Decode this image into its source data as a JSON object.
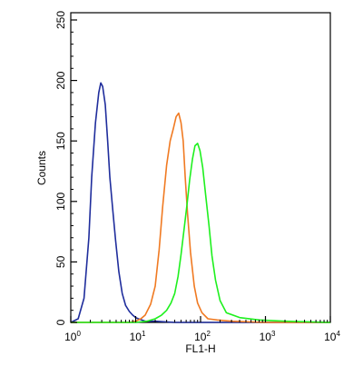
{
  "chart_data": {
    "type": "line",
    "title": "",
    "xlabel": "FL1-H",
    "ylabel": "Counts",
    "x_scale": "log",
    "xlim": [
      1,
      10000
    ],
    "ylim": [
      0,
      256
    ],
    "grid": false,
    "legend": "none",
    "x_ticks": [
      {
        "value": 1,
        "base": "10",
        "exp": "0"
      },
      {
        "value": 10,
        "base": "10",
        "exp": "1"
      },
      {
        "value": 100,
        "base": "10",
        "exp": "2"
      },
      {
        "value": 1000,
        "base": "10",
        "exp": "3"
      },
      {
        "value": 10000,
        "base": "10",
        "exp": "4"
      }
    ],
    "y_ticks": [
      "0",
      "50",
      "100",
      "150",
      "200",
      "250"
    ],
    "series": [
      {
        "color": "#1f2d9c",
        "x": [
          1.0,
          1.3,
          1.6,
          1.9,
          2.1,
          2.4,
          2.7,
          2.9,
          3.1,
          3.4,
          3.7,
          4.0,
          4.4,
          4.9,
          5.5,
          6.2,
          7.0,
          8.0,
          9.0,
          10.0,
          11.0,
          12.5,
          14.0,
          20.0,
          40.0,
          100.0,
          1000.0,
          10000.0
        ],
        "y": [
          0,
          3,
          20,
          70,
          120,
          165,
          190,
          198,
          195,
          180,
          150,
          120,
          95,
          68,
          42,
          24,
          14,
          9,
          6,
          4,
          3,
          2,
          1,
          1,
          0,
          0,
          0,
          0
        ]
      },
      {
        "color": "#f07a22",
        "x": [
          1.0,
          8.0,
          10.0,
          12.0,
          14.0,
          17.0,
          20.0,
          23.0,
          26.0,
          30.0,
          34.0,
          38.0,
          42.0,
          46.0,
          50.0,
          54.0,
          58.0,
          63.0,
          70.0,
          80.0,
          90.0,
          105.0,
          130.0,
          180.0,
          300.0,
          1000.0,
          10000.0
        ],
        "y": [
          0,
          0,
          1,
          3,
          6,
          15,
          30,
          60,
          95,
          130,
          150,
          160,
          170,
          173,
          165,
          150,
          120,
          90,
          58,
          30,
          16,
          8,
          3,
          2,
          1,
          0,
          0
        ]
      },
      {
        "color": "#1ef01e",
        "x": [
          1.0,
          10.0,
          15.0,
          20.0,
          25.0,
          30.0,
          35.0,
          40.0,
          45.0,
          50.0,
          56.0,
          62.0,
          68.0,
          75.0,
          82.0,
          90.0,
          98.0,
          108.0,
          120.0,
          135.0,
          150.0,
          170.0,
          200.0,
          250.0,
          400.0,
          800.0,
          2000.0,
          10000.0
        ],
        "y": [
          0,
          0,
          1,
          3,
          6,
          10,
          16,
          24,
          38,
          56,
          78,
          98,
          118,
          135,
          146,
          148,
          142,
          128,
          105,
          80,
          55,
          35,
          18,
          8,
          4,
          2,
          1,
          0
        ]
      }
    ]
  }
}
